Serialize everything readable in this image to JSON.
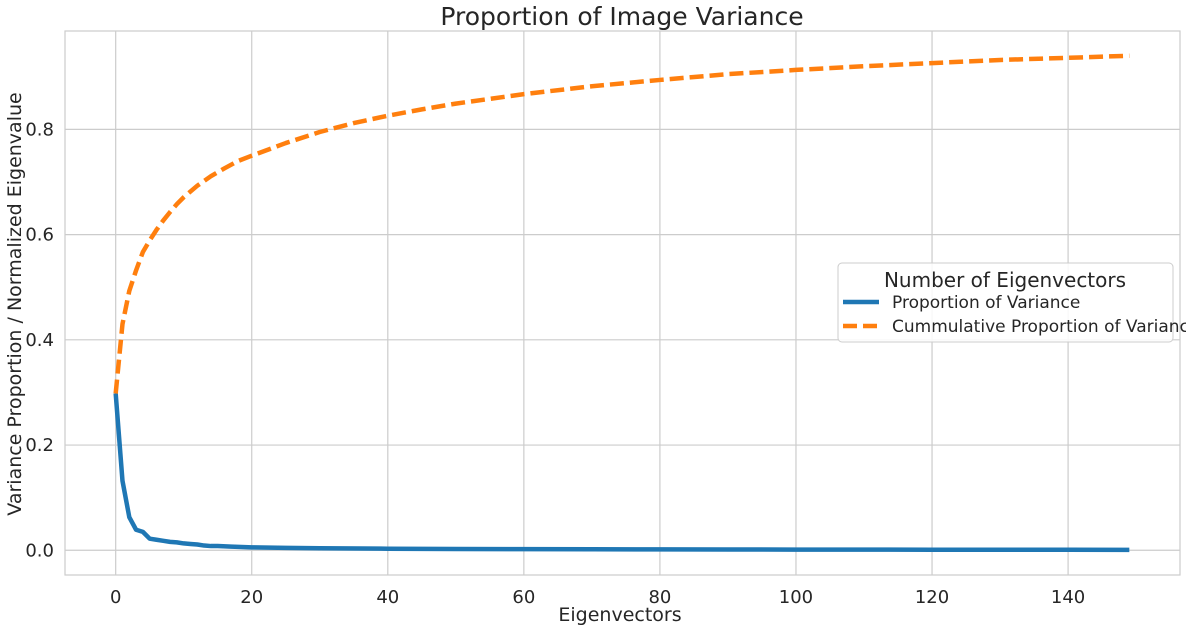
{
  "chart_data": {
    "type": "line",
    "title": "Proportion of Image Variance",
    "xlabel": "Eigenvectors",
    "ylabel": "Variance Proportion / Normalized Eigenvalue",
    "xlim": [
      -7.45,
      156.45
    ],
    "ylim": [
      -0.047,
      0.987
    ],
    "xticks": [
      0,
      20,
      40,
      60,
      80,
      100,
      120,
      140
    ],
    "yticks": [
      0.0,
      0.2,
      0.4,
      0.6,
      0.8
    ],
    "grid": true,
    "legend": {
      "title": "Number of Eigenvectors",
      "placement": "center-right"
    },
    "series": [
      {
        "name": "Proportion of Variance",
        "color": "#1f77b4",
        "style": "solid",
        "x": [
          0,
          1,
          2,
          3,
          4,
          5,
          6,
          7,
          8,
          9,
          10,
          11,
          12,
          13,
          14,
          15,
          17,
          20,
          25,
          30,
          40,
          50,
          60,
          70,
          80,
          90,
          100,
          110,
          120,
          130,
          140,
          149
        ],
        "y": [
          0.298,
          0.132,
          0.063,
          0.039,
          0.035,
          0.022,
          0.02,
          0.018,
          0.016,
          0.015,
          0.013,
          0.012,
          0.011,
          0.009,
          0.008,
          0.008,
          0.007,
          0.0055,
          0.0045,
          0.0038,
          0.003,
          0.0025,
          0.0022,
          0.0019,
          0.0017,
          0.0015,
          0.0013,
          0.0012,
          0.0011,
          0.001,
          0.0009,
          0.0008
        ]
      },
      {
        "name": "Cummulative Proportion of Variance",
        "color": "#ff7f0e",
        "style": "dashed",
        "x": [
          0,
          1,
          2,
          3,
          4,
          5,
          6,
          7,
          8,
          9,
          10,
          12,
          14,
          16,
          18,
          20,
          25,
          30,
          35,
          40,
          45,
          50,
          60,
          70,
          80,
          90,
          100,
          110,
          120,
          130,
          140,
          149
        ],
        "y": [
          0.298,
          0.43,
          0.493,
          0.532,
          0.567,
          0.589,
          0.609,
          0.627,
          0.643,
          0.658,
          0.671,
          0.693,
          0.711,
          0.726,
          0.74,
          0.75,
          0.774,
          0.795,
          0.812,
          0.826,
          0.838,
          0.849,
          0.867,
          0.882,
          0.894,
          0.905,
          0.913,
          0.92,
          0.926,
          0.932,
          0.936,
          0.94
        ]
      }
    ]
  }
}
